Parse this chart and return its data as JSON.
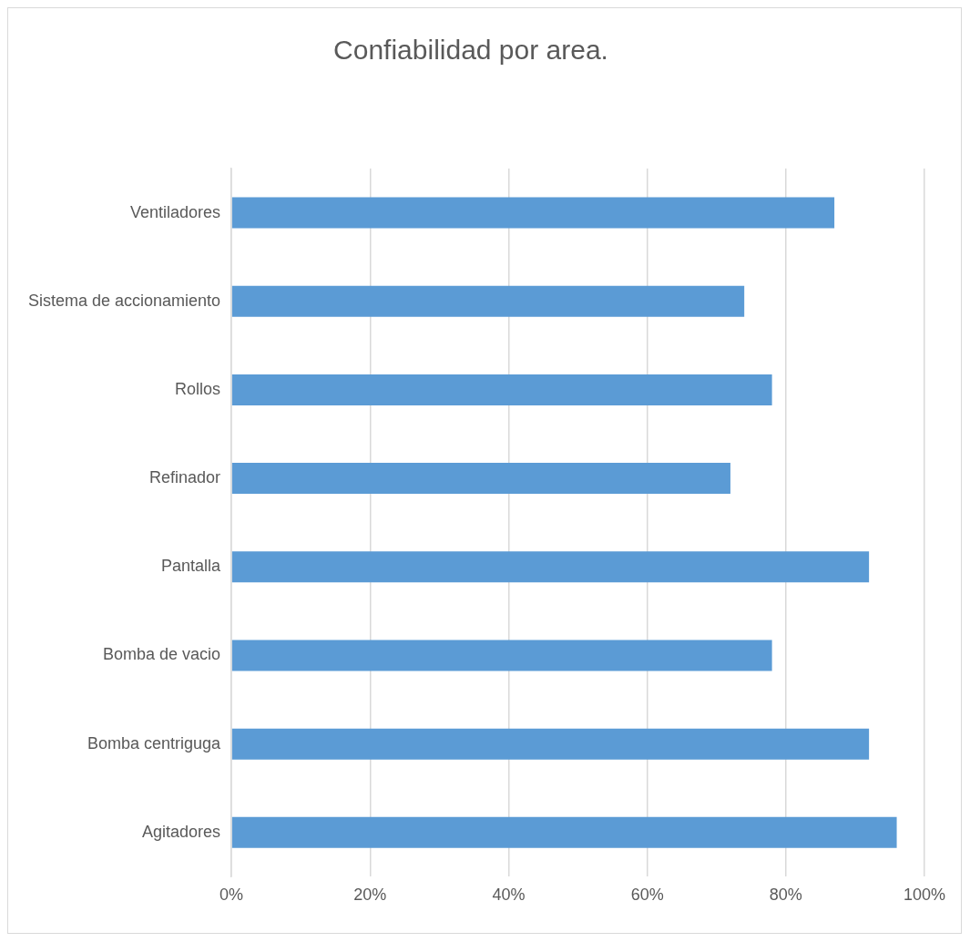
{
  "chart_data": {
    "type": "bar",
    "orientation": "horizontal",
    "title": "Confiabilidad por area.",
    "categories": [
      "Ventiladores",
      "Sistema de accionamiento",
      "Rollos",
      "Refinador",
      "Pantalla",
      "Bomba de vacio",
      "Bomba centriguga",
      "Agitadores"
    ],
    "values": [
      87,
      74,
      78,
      72,
      92,
      78,
      92,
      96
    ],
    "color": "#5b9bd5",
    "xlim": [
      0,
      100
    ],
    "xticks": [
      {
        "value": 0,
        "label": "0%"
      },
      {
        "value": 20,
        "label": "20%"
      },
      {
        "value": 40,
        "label": "40%"
      },
      {
        "value": 60,
        "label": "60%"
      },
      {
        "value": 80,
        "label": "80%"
      },
      {
        "value": 100,
        "label": "100%"
      }
    ],
    "grid": "x",
    "legend": false
  }
}
